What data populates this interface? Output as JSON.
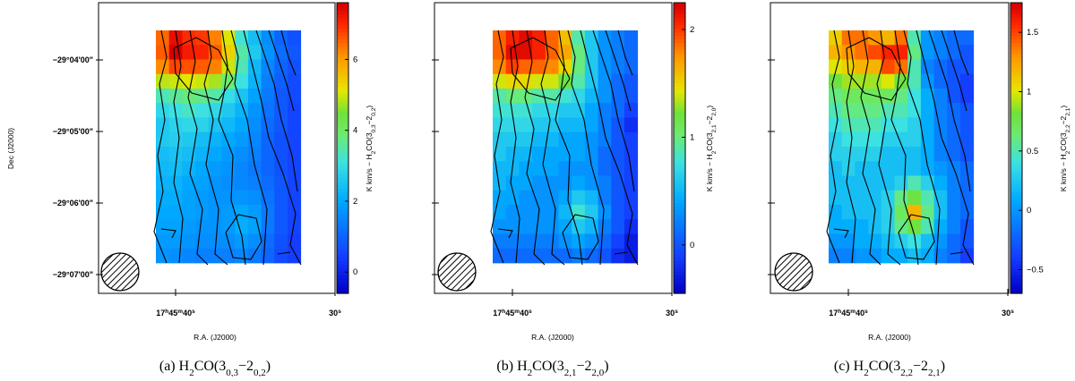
{
  "figure": {
    "panels": [
      {
        "caption": {
          "prefix": "(a)  H",
          "sub1": "2",
          "mid": "CO(3",
          "sub2": "0,3",
          "dash": "−2",
          "sub3": "0,2",
          "end": ")"
        },
        "colorbar": {
          "label": "K km/s  −  H2CO(30,3−20,2)",
          "min": -0.6,
          "max": 7.6,
          "ticks": [
            0,
            2,
            4,
            6
          ],
          "tick_labels": [
            "0",
            "2",
            "4",
            "6"
          ]
        },
        "dec_label": "Dec (J2000)",
        "dec_ticks": [
          "−29°04'00\"",
          "−29°05'00\"",
          "−29°06'00\"",
          "−29°07'00\""
        ],
        "ra_label": "R.A. (J2000)",
        "ra_ticks": [
          "17h45m40s",
          "30s"
        ]
      },
      {
        "caption": {
          "prefix": "(b)  H",
          "sub1": "2",
          "mid": "CO(3",
          "sub2": "2,1",
          "dash": "−2",
          "sub3": "2,0",
          "end": ")"
        },
        "colorbar": {
          "label": "K km/s  −  H2CO(32,1−22,0)",
          "min": -0.45,
          "max": 2.25,
          "ticks": [
            0,
            1,
            2
          ],
          "tick_labels": [
            "0",
            "1",
            "2"
          ]
        },
        "dec_label": "",
        "dec_ticks": [],
        "ra_label": "R.A. (J2000)",
        "ra_ticks": [
          "17h45m40s",
          "30s"
        ]
      },
      {
        "caption": {
          "prefix": "(c)  H",
          "sub1": "2",
          "mid": "CO(3",
          "sub2": "2,2",
          "dash": "−2",
          "sub3": "2,1",
          "end": ")"
        },
        "colorbar": {
          "label": "K km/s  −  H2CO(32,2−22,1)",
          "min": -0.7,
          "max": 1.75,
          "ticks": [
            -0.5,
            0,
            0.5,
            1,
            1.5
          ],
          "tick_labels": [
            "−0.5",
            "0",
            "0.5",
            "1",
            "1.5"
          ]
        },
        "dec_label": "",
        "dec_ticks": [],
        "ra_label": "R.A. (J2000)",
        "ra_ticks": [
          "17h45m40s",
          "30s"
        ]
      }
    ]
  },
  "chart_data": [
    {
      "type": "heatmap",
      "xlabel": "R.A. (J2000)",
      "ylabel": "Dec (J2000)",
      "x_tick_labels": [
        "17h45m40s",
        "30s"
      ],
      "y_tick_labels": [
        "−29°04'00\"",
        "−29°05'00\"",
        "−29°06'00\"",
        "−29°07'00\""
      ],
      "colorbar_label": "K km/s − H2CO(30,3−20,2)",
      "colorbar_range": [
        -0.6,
        7.6
      ],
      "grid_columns": 11,
      "grid_rows": 16,
      "grid": [
        [
          6.5,
          7.4,
          7.0,
          6.9,
          6.3,
          5.1,
          3.2,
          2.4,
          1.6,
          1.0,
          0.7
        ],
        [
          6.6,
          7.6,
          7.2,
          7.1,
          6.6,
          5.4,
          3.5,
          2.6,
          1.7,
          1.1,
          0.8
        ],
        [
          6.2,
          6.8,
          6.7,
          6.6,
          6.3,
          5.0,
          3.4,
          2.3,
          1.5,
          1.0,
          0.7
        ],
        [
          4.9,
          5.0,
          5.1,
          5.0,
          4.8,
          3.9,
          3.1,
          2.2,
          1.4,
          0.9,
          0.6
        ],
        [
          3.4,
          3.6,
          3.8,
          3.7,
          3.5,
          3.0,
          2.5,
          1.9,
          1.3,
          0.8,
          0.6
        ],
        [
          2.9,
          3.1,
          3.3,
          3.1,
          2.9,
          2.6,
          2.2,
          1.7,
          1.2,
          0.8,
          0.5
        ],
        [
          2.6,
          2.8,
          2.9,
          2.8,
          2.5,
          2.3,
          2.0,
          1.6,
          1.1,
          0.8,
          0.5
        ],
        [
          2.6,
          2.7,
          2.6,
          2.4,
          2.2,
          2.0,
          1.8,
          1.5,
          1.0,
          0.7,
          0.5
        ],
        [
          2.4,
          2.5,
          2.4,
          2.2,
          2.0,
          1.8,
          1.6,
          1.4,
          1.0,
          0.7,
          0.5
        ],
        [
          2.3,
          2.4,
          2.2,
          2.0,
          1.8,
          1.7,
          1.5,
          1.3,
          1.0,
          0.7,
          0.5
        ],
        [
          2.2,
          2.2,
          2.0,
          1.9,
          1.7,
          1.6,
          1.5,
          1.4,
          1.1,
          0.8,
          0.5
        ],
        [
          2.1,
          2.1,
          1.9,
          1.8,
          1.7,
          1.7,
          1.7,
          1.6,
          1.2,
          0.8,
          0.5
        ],
        [
          2.0,
          2.0,
          1.9,
          1.8,
          1.7,
          1.8,
          2.0,
          1.8,
          1.3,
          0.8,
          0.5
        ],
        [
          1.9,
          1.9,
          1.8,
          1.7,
          1.7,
          1.8,
          2.1,
          1.9,
          1.3,
          0.8,
          0.5
        ],
        [
          1.8,
          1.8,
          1.7,
          1.6,
          1.6,
          1.6,
          1.8,
          1.6,
          1.1,
          0.7,
          0.4
        ],
        [
          1.7,
          1.6,
          1.5,
          1.4,
          1.4,
          1.4,
          1.5,
          1.3,
          1.0,
          0.6,
          0.4
        ]
      ]
    },
    {
      "type": "heatmap",
      "xlabel": "R.A. (J2000)",
      "ylabel": "",
      "x_tick_labels": [
        "17h45m40s",
        "30s"
      ],
      "y_tick_labels": [],
      "colorbar_label": "K km/s − H2CO(32,1−22,0)",
      "colorbar_range": [
        -0.45,
        2.25
      ],
      "grid_columns": 11,
      "grid_rows": 16,
      "grid": [
        [
          1.9,
          2.1,
          2.2,
          2.1,
          1.9,
          1.6,
          0.9,
          0.6,
          0.3,
          0.2,
          0.1
        ],
        [
          1.9,
          2.2,
          2.2,
          2.1,
          1.9,
          1.7,
          1.0,
          0.6,
          0.3,
          0.2,
          0.1
        ],
        [
          1.8,
          2.0,
          1.9,
          1.9,
          1.8,
          1.5,
          1.0,
          0.6,
          0.3,
          0.2,
          0.1
        ],
        [
          1.4,
          1.5,
          1.5,
          1.4,
          1.4,
          1.2,
          0.9,
          0.6,
          0.3,
          0.1,
          0.0
        ],
        [
          0.9,
          1.0,
          1.0,
          0.9,
          0.9,
          0.8,
          0.7,
          0.5,
          0.3,
          0.1,
          0.0
        ],
        [
          0.8,
          0.8,
          0.8,
          0.7,
          0.7,
          0.6,
          0.6,
          0.4,
          0.2,
          0.1,
          -0.1
        ],
        [
          0.7,
          0.7,
          0.7,
          0.6,
          0.6,
          0.5,
          0.5,
          0.4,
          0.2,
          0.0,
          -0.2
        ],
        [
          0.6,
          0.6,
          0.6,
          0.5,
          0.5,
          0.4,
          0.4,
          0.3,
          0.2,
          0.0,
          -0.1
        ],
        [
          0.6,
          0.5,
          0.5,
          0.4,
          0.4,
          0.4,
          0.4,
          0.3,
          0.1,
          0.0,
          -0.1
        ],
        [
          0.5,
          0.5,
          0.4,
          0.4,
          0.4,
          0.3,
          0.3,
          0.3,
          0.1,
          0.0,
          -0.1
        ],
        [
          0.5,
          0.4,
          0.4,
          0.3,
          0.3,
          0.3,
          0.4,
          0.3,
          0.2,
          0.0,
          -0.1
        ],
        [
          0.4,
          0.4,
          0.3,
          0.3,
          0.3,
          0.4,
          0.6,
          0.5,
          0.2,
          0.0,
          -0.1
        ],
        [
          0.4,
          0.3,
          0.3,
          0.3,
          0.3,
          0.5,
          0.8,
          0.6,
          0.3,
          0.0,
          -0.1
        ],
        [
          0.3,
          0.3,
          0.3,
          0.3,
          0.3,
          0.4,
          0.6,
          0.5,
          0.2,
          0.0,
          -0.2
        ],
        [
          0.2,
          0.2,
          0.2,
          0.2,
          0.2,
          0.3,
          0.4,
          0.3,
          0.1,
          -0.1,
          -0.3
        ],
        [
          0.1,
          0.1,
          0.1,
          0.1,
          0.1,
          0.1,
          0.2,
          0.1,
          0.0,
          -0.2,
          -0.3
        ]
      ]
    },
    {
      "type": "heatmap",
      "xlabel": "R.A. (J2000)",
      "ylabel": "",
      "x_tick_labels": [
        "17h45m40s",
        "30s"
      ],
      "y_tick_labels": [],
      "colorbar_label": "K km/s − H2CO(32,2−22,1)",
      "colorbar_range": [
        -0.7,
        1.75
      ],
      "grid_columns": 11,
      "grid_rows": 16,
      "grid": [
        [
          1.1,
          1.4,
          1.4,
          1.3,
          1.2,
          1.4,
          0.5,
          0.0,
          -0.1,
          -0.2,
          -0.2
        ],
        [
          1.2,
          1.3,
          1.4,
          1.5,
          1.6,
          1.6,
          0.6,
          0.0,
          -0.1,
          -0.2,
          -0.3
        ],
        [
          1.0,
          1.1,
          1.2,
          1.2,
          1.5,
          1.4,
          0.5,
          -0.1,
          -0.2,
          -0.3,
          -0.3
        ],
        [
          0.8,
          0.9,
          0.9,
          0.9,
          1.0,
          0.8,
          0.5,
          0.0,
          -0.2,
          -0.3,
          -0.4
        ],
        [
          0.6,
          0.7,
          0.7,
          0.7,
          0.7,
          0.6,
          0.4,
          0.1,
          -0.1,
          -0.3,
          -0.4
        ],
        [
          0.5,
          0.6,
          0.6,
          0.6,
          0.5,
          0.5,
          0.4,
          0.1,
          -0.1,
          -0.2,
          -0.3
        ],
        [
          0.4,
          0.5,
          0.5,
          0.5,
          0.4,
          0.4,
          0.3,
          0.1,
          -0.1,
          -0.2,
          -0.3
        ],
        [
          0.3,
          0.4,
          0.4,
          0.4,
          0.3,
          0.3,
          0.3,
          0.1,
          -0.1,
          -0.2,
          -0.3
        ],
        [
          0.3,
          0.3,
          0.3,
          0.3,
          0.2,
          0.2,
          0.2,
          0.1,
          -0.1,
          -0.2,
          -0.3
        ],
        [
          0.2,
          0.3,
          0.2,
          0.2,
          0.2,
          0.2,
          0.2,
          0.1,
          0.0,
          -0.1,
          -0.2
        ],
        [
          0.2,
          0.2,
          0.2,
          0.2,
          0.2,
          0.3,
          0.5,
          0.3,
          0.1,
          -0.1,
          -0.2
        ],
        [
          0.2,
          0.2,
          0.2,
          0.2,
          0.3,
          0.6,
          0.8,
          0.5,
          0.2,
          -0.1,
          -0.2
        ],
        [
          0.1,
          0.2,
          0.2,
          0.2,
          0.3,
          0.7,
          1.2,
          0.6,
          0.2,
          -0.1,
          -0.2
        ],
        [
          0.1,
          0.1,
          0.1,
          0.2,
          0.3,
          0.6,
          0.8,
          0.5,
          0.1,
          -0.1,
          -0.3
        ],
        [
          0.0,
          0.0,
          0.1,
          0.1,
          0.2,
          0.3,
          0.4,
          0.2,
          0.0,
          -0.2,
          -0.3
        ],
        [
          -0.1,
          -0.1,
          0.0,
          0.0,
          0.1,
          0.1,
          0.2,
          0.1,
          -0.1,
          -0.2,
          -0.4
        ]
      ]
    }
  ]
}
